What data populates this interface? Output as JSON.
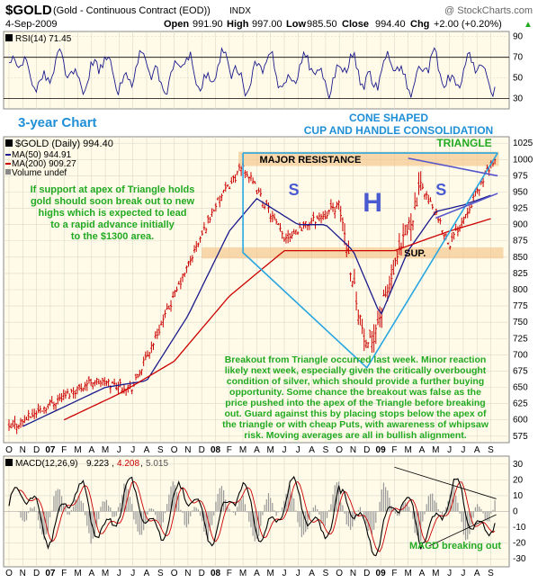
{
  "header": {
    "symbol": "$GOLD",
    "name": "(Gold - Continuous Contract (EOD))",
    "exchange": "INDX",
    "watermark": "@ StockCharts.com",
    "date": "4-Sep-2009",
    "open_label": "Open",
    "open": "991.90",
    "high_label": "High",
    "high": "997.00",
    "low_label": "Low",
    "low": "985.50",
    "close_label": "Close",
    "close": "994.40",
    "chg_label": "Chg",
    "chg": "+2.00 (+0.20%)",
    "chg_arrow": "▲"
  },
  "rsi_panel": {
    "label": "RSI(14) 71.45",
    "ticks": [
      "90",
      "70",
      "50",
      "30"
    ]
  },
  "price_panel": {
    "legend": [
      {
        "text": "$GOLD (Daily) 994.40",
        "color": "#000000"
      },
      {
        "text": "MA(50) 944.91",
        "color": "#1a1a8c"
      },
      {
        "text": "MA(200) 909.27",
        "color": "#cc0000"
      },
      {
        "text": "Volume undef",
        "color": "#000000"
      }
    ],
    "ticks": [
      "1025",
      "1000",
      "975",
      "950",
      "925",
      "900",
      "875",
      "850",
      "825",
      "800",
      "775",
      "750",
      "725",
      "700",
      "675",
      "650",
      "625",
      "600",
      "575"
    ]
  },
  "macd_panel": {
    "label": "MACD(12,26,9)",
    "v1": "9.223",
    "v2": "4.208",
    "v3": "5.015",
    "ticks": [
      "30",
      "20",
      "10",
      "0",
      "-10",
      "-20",
      "-30"
    ]
  },
  "x_axis": {
    "labels": [
      "O",
      "N",
      "D",
      "07",
      "F",
      "M",
      "A",
      "M",
      "J",
      "J",
      "A",
      "S",
      "O",
      "N",
      "D",
      "08",
      "F",
      "M",
      "A",
      "M",
      "J",
      "J",
      "A",
      "S",
      "O",
      "N",
      "D",
      "09",
      "F",
      "M",
      "A",
      "M",
      "J",
      "J",
      "A",
      "S"
    ]
  },
  "annotations": {
    "three_year": "3-year Chart",
    "cone_line1": "CONE SHAPED",
    "cone_line2": "CUP AND HANDLE CONSOLIDATION",
    "triangle": "TRIANGLE",
    "major_resistance": "MAJOR RESISTANCE",
    "sup": "SUP.",
    "s_left": "S",
    "h": "H",
    "s_right": "S",
    "left_note": [
      "If support at apex of Triangle holds",
      "gold should soon break out to new",
      "highs which is expected to lead",
      "to a rapid advance initially",
      "to the $1300 area."
    ],
    "bottom_note": [
      "Breakout from Triangle occurred last week. Minor reaction",
      "likely next week, especially given the critically overbought",
      "condition of silver, which should provide a further buying",
      "opportunity. Some chance the breakout was false as the",
      "price pushed into the apex of the Triangle before breaking",
      "out. Guard against this by placing stops below the apex of",
      "the triangle or with cheap Puts, with awareness of whipsaw",
      "risk. Moving averages are all in bullish alignment."
    ],
    "macd_note": "MACD breaking out"
  },
  "colors": {
    "panel_bg": "#fffbe8",
    "grid": "#d9d9cc",
    "price_bar": "#cc0000",
    "ma50": "#1a1a8c",
    "ma200": "#cc0000",
    "annotation_green": "#22aa22",
    "annotation_blue": "#1f8fd6",
    "cone": "#2aa6e0",
    "zone": "#f5c58a",
    "triangle": "#5555cc"
  },
  "chart_data": [
    {
      "type": "line",
      "title": "RSI(14) 71.45",
      "ylim": [
        20,
        95
      ],
      "reference_lines": [
        70,
        50,
        30
      ]
    },
    {
      "type": "ohlc",
      "title": "$GOLD (Daily) 994.40",
      "ylim": [
        565,
        1035
      ],
      "series": [
        {
          "name": "$GOLD (Daily)",
          "last": 994.4
        },
        {
          "name": "MA(50)",
          "last": 944.91
        },
        {
          "name": "MA(200)",
          "last": 909.27
        }
      ],
      "anchors_months": [
        0,
        3,
        6,
        9,
        12,
        15,
        17,
        20,
        22,
        24,
        26,
        28,
        30,
        32,
        34,
        35
      ],
      "anchors_close": [
        585,
        625,
        660,
        650,
        790,
        930,
        990,
        880,
        905,
        930,
        700,
        830,
        960,
        870,
        950,
        994
      ],
      "ma50_months": [
        1,
        4,
        7,
        10,
        13,
        16,
        18,
        21,
        23,
        25,
        27,
        29,
        31,
        33,
        35
      ],
      "ma50_values": [
        590,
        620,
        650,
        660,
        760,
        890,
        940,
        900,
        900,
        860,
        760,
        860,
        920,
        930,
        945
      ],
      "ma200_months": [
        4,
        8,
        12,
        16,
        20,
        24,
        28,
        32,
        35
      ],
      "ma200_values": [
        600,
        640,
        690,
        790,
        860,
        860,
        860,
        890,
        909
      ],
      "resistance_zone": [
        990,
        1012
      ],
      "support_zone": [
        848,
        865
      ]
    },
    {
      "type": "line",
      "title": "MACD(12,26,9) 9.223, 4.208, 5.015",
      "ylim": [
        -35,
        35
      ],
      "series": [
        {
          "name": "MACD",
          "last": 9.223
        },
        {
          "name": "Signal",
          "last": 4.208
        },
        {
          "name": "Histogram",
          "last": 5.015
        }
      ]
    }
  ]
}
